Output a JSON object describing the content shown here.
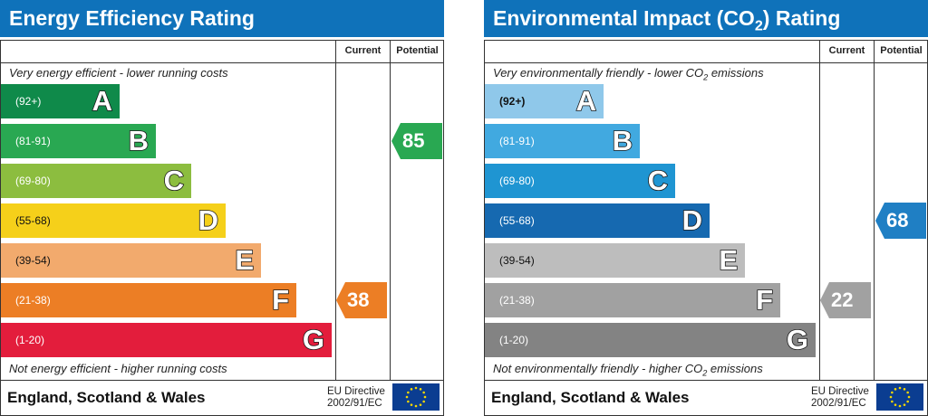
{
  "chart_data": [
    {
      "type": "bar",
      "title": "Energy Efficiency Rating",
      "columns": [
        "Current",
        "Potential"
      ],
      "top_note": "Very energy efficient - lower running costs",
      "bottom_note": "Not energy efficient - higher running costs",
      "bands": [
        {
          "range": "(92+)",
          "letter": "A",
          "color": "#0f8a4a"
        },
        {
          "range": "(81-91)",
          "letter": "B",
          "color": "#29a852"
        },
        {
          "range": "(69-80)",
          "letter": "C",
          "color": "#8cbd3f"
        },
        {
          "range": "(55-68)",
          "letter": "D",
          "color": "#f5d01a"
        },
        {
          "range": "(39-54)",
          "letter": "E",
          "color": "#f2aa6d"
        },
        {
          "range": "(21-38)",
          "letter": "F",
          "color": "#ec7e25"
        },
        {
          "range": "(1-20)",
          "letter": "G",
          "color": "#e31d3c"
        }
      ],
      "current": {
        "value": 38,
        "color": "#ec7e25"
      },
      "potential": {
        "value": 85,
        "color": "#29a852"
      },
      "title_bar_color": "#0f72ba",
      "footer_region": "England, Scotland & Wales",
      "eu_directive_line1": "EU Directive",
      "eu_directive_line2": "2002/91/EC"
    },
    {
      "type": "bar",
      "title_parts": [
        "Environmental Impact (CO",
        "2",
        ") Rating"
      ],
      "columns": [
        "Current",
        "Potential"
      ],
      "top_note_parts": [
        "Very environmentally friendly - lower CO",
        "2",
        " emissions"
      ],
      "bottom_note_parts": [
        "Not environmentally friendly - higher CO",
        "2",
        " emissions"
      ],
      "bands": [
        {
          "range": "(92+)",
          "letter": "A",
          "color": "#8fc8ea"
        },
        {
          "range": "(81-91)",
          "letter": "B",
          "color": "#41a9e0"
        },
        {
          "range": "(69-80)",
          "letter": "C",
          "color": "#1f95d2"
        },
        {
          "range": "(55-68)",
          "letter": "D",
          "color": "#1669b0"
        },
        {
          "range": "(39-54)",
          "letter": "E",
          "color": "#bdbdbd"
        },
        {
          "range": "(21-38)",
          "letter": "F",
          "color": "#a1a1a1"
        },
        {
          "range": "(1-20)",
          "letter": "G",
          "color": "#838383"
        }
      ],
      "current": {
        "value": 22,
        "color": "#a1a1a1"
      },
      "potential": {
        "value": 68,
        "color": "#1f7fc4"
      },
      "title_bar_color": "#0f72ba",
      "footer_region": "England, Scotland & Wales",
      "eu_directive_line1": "EU Directive",
      "eu_directive_line2": "2002/91/EC"
    }
  ]
}
